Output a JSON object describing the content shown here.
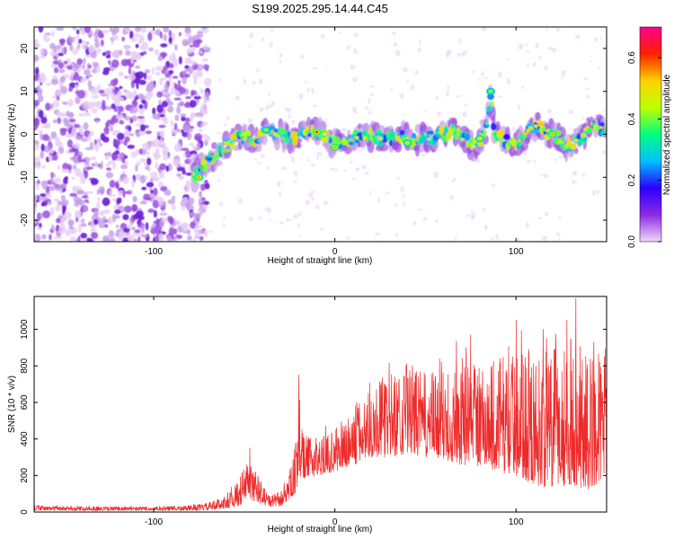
{
  "title": "S199.2025.295.14.44.C45",
  "chart_data": [
    {
      "type": "heatmap",
      "name": "spectrogram",
      "xlabel": "Height of straight line (km)",
      "ylabel": "Frequency (Hz)",
      "xlim": [
        -166,
        150
      ],
      "ylim": [
        -25,
        25
      ],
      "xticks": [
        -100,
        0,
        100
      ],
      "yticks": [
        -20,
        -10,
        0,
        10,
        20
      ],
      "noise_region_x": [
        -166,
        -76
      ],
      "ridge": [
        [
          -78,
          -10
        ],
        [
          -74,
          -8
        ],
        [
          -70,
          -6
        ],
        [
          -66,
          -5
        ],
        [
          -62,
          -3.5
        ],
        [
          -58,
          -2
        ],
        [
          -54,
          -1
        ],
        [
          -50,
          -0.5
        ],
        [
          -46,
          -1.5
        ],
        [
          -42,
          -1
        ],
        [
          -38,
          0.5
        ],
        [
          -34,
          0.5
        ],
        [
          -30,
          0
        ],
        [
          -26,
          -1
        ],
        [
          -22,
          -0.5
        ],
        [
          -18,
          0
        ],
        [
          -14,
          0.5
        ],
        [
          -10,
          0.5
        ],
        [
          -6,
          0
        ],
        [
          -2,
          -2
        ],
        [
          2,
          -2
        ],
        [
          6,
          -1.5
        ],
        [
          10,
          -1
        ],
        [
          14,
          -0.5
        ],
        [
          18,
          0
        ],
        [
          22,
          -0.5
        ],
        [
          26,
          -1
        ],
        [
          30,
          -1
        ],
        [
          34,
          -1
        ],
        [
          38,
          -0.5
        ],
        [
          42,
          -1.5
        ],
        [
          46,
          -1
        ],
        [
          50,
          -0.5
        ],
        [
          54,
          -1
        ],
        [
          58,
          0.5
        ],
        [
          62,
          0
        ],
        [
          66,
          1
        ],
        [
          70,
          -0.5
        ],
        [
          74,
          -2
        ],
        [
          78,
          -3
        ],
        [
          82,
          0
        ],
        [
          84,
          3
        ],
        [
          86,
          10
        ],
        [
          88,
          1
        ],
        [
          92,
          -1
        ],
        [
          96,
          -2
        ],
        [
          100,
          -2
        ],
        [
          104,
          -1
        ],
        [
          108,
          1
        ],
        [
          112,
          2
        ],
        [
          116,
          0.5
        ],
        [
          120,
          0
        ],
        [
          124,
          -1
        ],
        [
          128,
          -3
        ],
        [
          132,
          -2
        ],
        [
          136,
          -1
        ],
        [
          140,
          1
        ],
        [
          144,
          3
        ],
        [
          148,
          1
        ]
      ],
      "hotspots": [
        {
          "x": -75,
          "y": -10,
          "amp": 0.55
        },
        {
          "x": -38,
          "y": 1,
          "amp": 0.45
        },
        {
          "x": -10,
          "y": 0.5,
          "amp": 0.6
        },
        {
          "x": 0,
          "y": -3,
          "amp": 0.55
        },
        {
          "x": 40,
          "y": -2,
          "amp": 0.5
        },
        {
          "x": 80,
          "y": -1,
          "amp": 0.5
        },
        {
          "x": 86,
          "y": 10,
          "amp": 0.45
        },
        {
          "x": 120,
          "y": 0,
          "amp": 0.55
        }
      ],
      "colorbar": {
        "label": "Normalized spectral amplitude",
        "ticks": [
          0.0,
          0.2,
          0.4,
          0.6
        ],
        "tick_labels": [
          "0.0",
          "0.2",
          "0.4",
          "0.6"
        ],
        "range": [
          0,
          0.7
        ],
        "stops": [
          "#f0d8f8",
          "#8a2be2",
          "#2b00ff",
          "#00c0ff",
          "#00ff80",
          "#c0ff00",
          "#ffd000",
          "#ff2000",
          "#ff0090"
        ]
      }
    },
    {
      "type": "line",
      "name": "snr",
      "xlabel": "Height of straight line (km)",
      "ylabel": "SNR (10 * v/v)",
      "xlim": [
        -166,
        150
      ],
      "ylim": [
        0,
        1180
      ],
      "xticks": [
        -100,
        0,
        100
      ],
      "yticks": [
        0,
        200,
        400,
        600,
        800,
        1000
      ],
      "color": "#ee2a2a",
      "envelope": [
        [
          -166,
          10,
          35
        ],
        [
          -140,
          8,
          30
        ],
        [
          -120,
          8,
          30
        ],
        [
          -100,
          8,
          30
        ],
        [
          -80,
          8,
          35
        ],
        [
          -70,
          10,
          50
        ],
        [
          -60,
          20,
          90
        ],
        [
          -54,
          30,
          160
        ],
        [
          -48,
          60,
          300
        ],
        [
          -44,
          60,
          230
        ],
        [
          -40,
          40,
          160
        ],
        [
          -36,
          30,
          90
        ],
        [
          -30,
          30,
          110
        ],
        [
          -26,
          60,
          200
        ],
        [
          -22,
          100,
          320
        ],
        [
          -20,
          150,
          700
        ],
        [
          -18,
          180,
          420
        ],
        [
          -10,
          200,
          400
        ],
        [
          0,
          220,
          450
        ],
        [
          10,
          250,
          560
        ],
        [
          20,
          300,
          700
        ],
        [
          30,
          300,
          760
        ],
        [
          40,
          320,
          820
        ],
        [
          50,
          300,
          760
        ],
        [
          60,
          280,
          780
        ],
        [
          70,
          260,
          850
        ],
        [
          80,
          250,
          800
        ],
        [
          90,
          220,
          860
        ],
        [
          100,
          200,
          880
        ],
        [
          110,
          150,
          850
        ],
        [
          120,
          120,
          900
        ],
        [
          130,
          150,
          950
        ],
        [
          140,
          120,
          850
        ],
        [
          150,
          200,
          900
        ]
      ],
      "peaks": [
        [
          -47,
          350
        ],
        [
          -20,
          750
        ],
        [
          75,
          970
        ],
        [
          100,
          1050
        ],
        [
          115,
          1000
        ],
        [
          128,
          1050
        ],
        [
          133,
          1170
        ],
        [
          143,
          930
        ]
      ]
    }
  ]
}
